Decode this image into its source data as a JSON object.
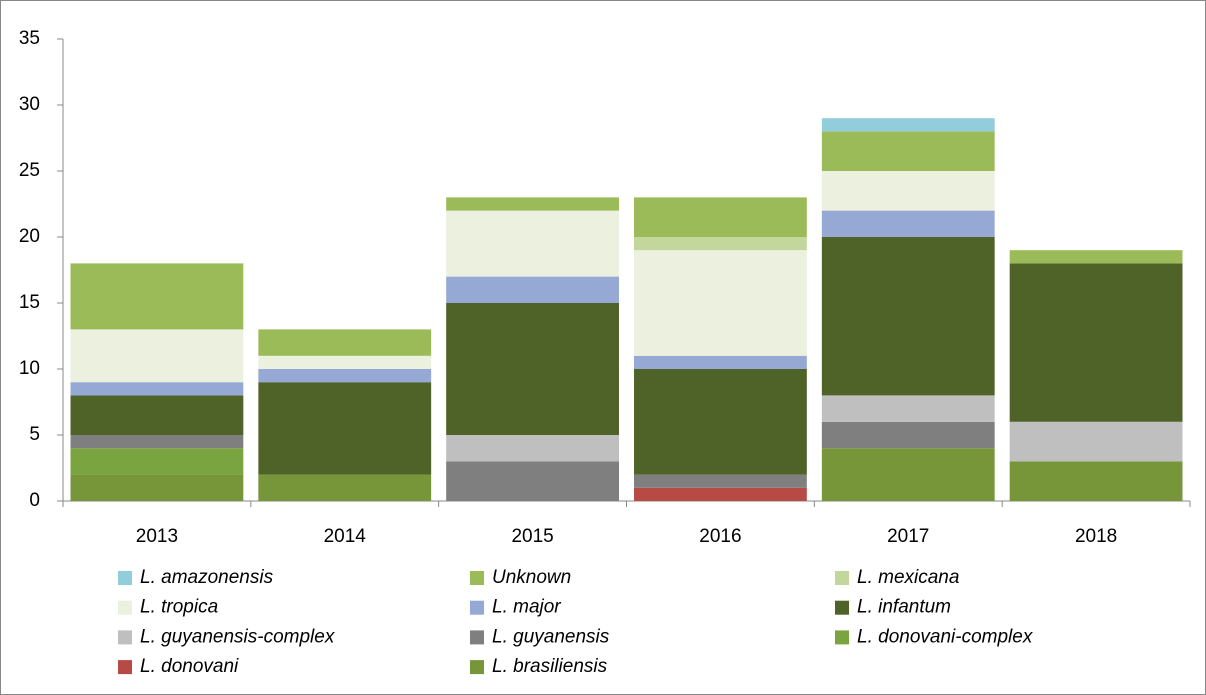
{
  "chart_data": {
    "type": "stacked_bar",
    "categories": [
      "2013",
      "2014",
      "2015",
      "2016",
      "2017",
      "2018"
    ],
    "ylim": [
      0,
      35
    ],
    "yticks": [
      0,
      5,
      10,
      15,
      20,
      25,
      30,
      35
    ],
    "series": [
      {
        "name": "L. amazonensis",
        "color": "#92cddc",
        "values": [
          0,
          0,
          0,
          0,
          1,
          0
        ]
      },
      {
        "name": "Unknown",
        "color": "#9bbb59",
        "values": [
          5,
          2,
          1,
          3,
          3,
          1
        ]
      },
      {
        "name": "L. mexicana",
        "color": "#c3d69b",
        "values": [
          0,
          0,
          0,
          1,
          0,
          0
        ]
      },
      {
        "name": "L. tropica",
        "color": "#ebf1de",
        "values": [
          4,
          1,
          5,
          8,
          3,
          0
        ]
      },
      {
        "name": "L. major",
        "color": "#95a9d4",
        "values": [
          1,
          1,
          2,
          1,
          2,
          0
        ]
      },
      {
        "name": "L. infantum",
        "color": "#4f6228",
        "values": [
          3,
          7,
          10,
          8,
          12,
          12
        ]
      },
      {
        "name": "L. guyanensis-complex",
        "color": "#bfbfbf",
        "values": [
          0,
          0,
          2,
          0,
          2,
          3
        ]
      },
      {
        "name": "L. guyanensis",
        "color": "#7f7f7f",
        "values": [
          1,
          0,
          3,
          1,
          2,
          0
        ]
      },
      {
        "name": "L. donovani-complex",
        "color": "#7aa43f",
        "values": [
          2,
          0,
          0,
          0,
          0,
          0
        ]
      },
      {
        "name": "L. donovani",
        "color": "#b84a45",
        "values": [
          0,
          0,
          0,
          1,
          0,
          0
        ]
      },
      {
        "name": "L. brasiliensis",
        "color": "#77963a",
        "values": [
          2,
          2,
          0,
          0,
          4,
          3
        ]
      }
    ]
  }
}
